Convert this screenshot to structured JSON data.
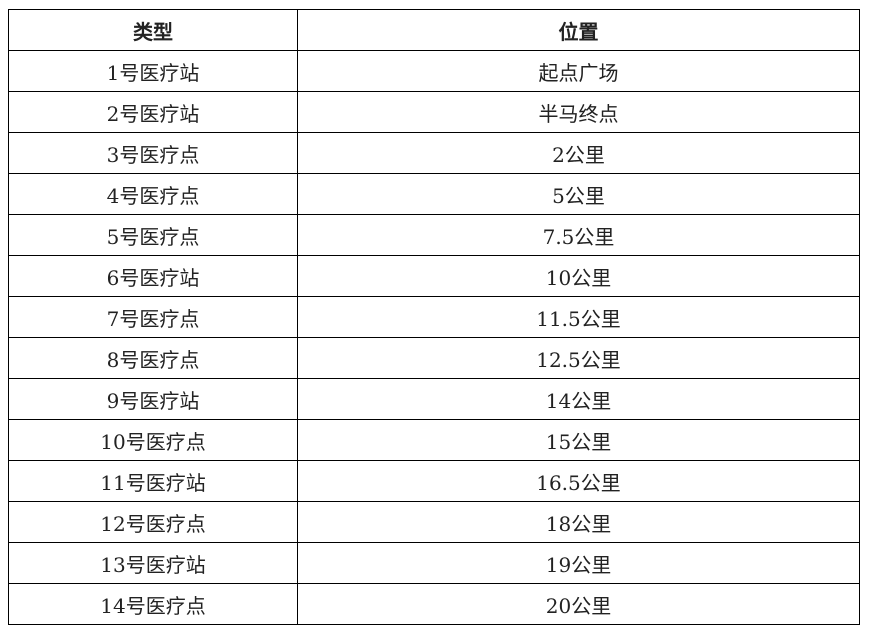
{
  "table": {
    "headers": [
      "类型",
      "位置"
    ],
    "rows": [
      [
        "1号医疗站",
        "起点广场"
      ],
      [
        "2号医疗站",
        "半马终点"
      ],
      [
        "3号医疗点",
        "2公里"
      ],
      [
        "4号医疗点",
        "5公里"
      ],
      [
        "5号医疗点",
        "7.5公里"
      ],
      [
        "6号医疗站",
        "10公里"
      ],
      [
        "7号医疗点",
        "11.5公里"
      ],
      [
        "8号医疗点",
        "12.5公里"
      ],
      [
        "9号医疗站",
        "14公里"
      ],
      [
        "10号医疗点",
        "15公里"
      ],
      [
        "11号医疗站",
        "16.5公里"
      ],
      [
        "12号医疗点",
        "18公里"
      ],
      [
        "13号医疗站",
        "19公里"
      ],
      [
        "14号医疗点",
        "20公里"
      ]
    ]
  }
}
